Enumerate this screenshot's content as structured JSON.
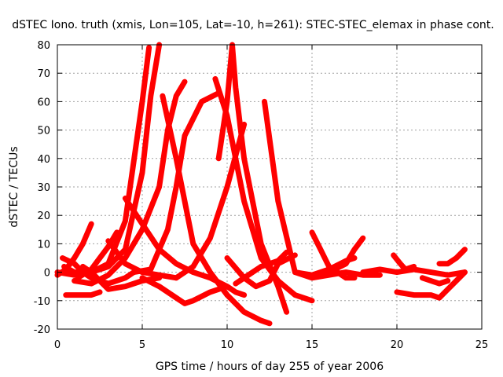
{
  "chart_data": {
    "type": "line",
    "title": "dSTEC Iono. truth (xmis, Lon=105, Lat=-10, h=261): STEC-STEC_elemax in phase cont.",
    "xlabel": "GPS time / hours of day 255 of year 2006",
    "ylabel": "dSTEC  / TECUs",
    "xlim": [
      0,
      25
    ],
    "ylim": [
      -20,
      80
    ],
    "xticks": [
      0,
      5,
      10,
      15,
      20,
      25
    ],
    "yticks": [
      -20,
      -10,
      0,
      10,
      20,
      30,
      40,
      50,
      60,
      70,
      80
    ],
    "grid": true,
    "marker": "+",
    "color": "#ff0000",
    "series": [
      {
        "x": [
          0.0,
          0.5,
          1.0,
          1.5,
          2.0
        ],
        "y": [
          -1,
          1,
          5,
          10,
          17
        ]
      },
      {
        "x": [
          0.0,
          1.0,
          2.0,
          3.0,
          4.0,
          5.0,
          5.5,
          6.0
        ],
        "y": [
          0,
          -1,
          0,
          2,
          8,
          35,
          62,
          80
        ]
      },
      {
        "x": [
          0.4,
          1.0,
          2.0,
          3.0,
          4.0,
          5.0,
          5.4
        ],
        "y": [
          2,
          0,
          0,
          3,
          18,
          60,
          79
        ]
      },
      {
        "x": [
          0.3,
          1.0,
          1.5,
          2.0,
          3.0,
          4.0,
          4.5
        ],
        "y": [
          5,
          3,
          0,
          -2,
          -4,
          -2,
          0
        ]
      },
      {
        "x": [
          0.5,
          1.0,
          1.5,
          2.0,
          2.5
        ],
        "y": [
          -8,
          -8,
          -8,
          -8,
          -7
        ]
      },
      {
        "x": [
          1.0,
          2.0,
          3.0,
          4.0,
          5.0,
          6.0,
          6.5,
          7.0,
          7.5
        ],
        "y": [
          -3,
          -4,
          -1,
          5,
          15,
          30,
          50,
          62,
          67
        ]
      },
      {
        "x": [
          1.2,
          2.0,
          3.0,
          3.5
        ],
        "y": [
          -2,
          1,
          9,
          14
        ]
      },
      {
        "x": [
          1.5,
          2.0,
          2.5,
          3.0,
          4.0,
          5.0,
          6.0
        ],
        "y": [
          2,
          0,
          -3,
          -6,
          -5,
          -3,
          -2
        ]
      },
      {
        "x": [
          3.0,
          4.0,
          5.0,
          6.0,
          7.0
        ],
        "y": [
          11,
          3,
          0,
          -1,
          -2
        ]
      },
      {
        "x": [
          4.0,
          5.0,
          6.0,
          7.0,
          8.0,
          9.0,
          10.0,
          10.5,
          11.0
        ],
        "y": [
          26,
          17,
          8,
          3,
          0,
          -2,
          -5,
          -7,
          -8
        ]
      },
      {
        "x": [
          4.5,
          5.5,
          6.5,
          7.0,
          7.5,
          8.5,
          9.5
        ],
        "y": [
          0,
          1,
          15,
          30,
          48,
          60,
          63
        ]
      },
      {
        "x": [
          6.2,
          7.0,
          8.0,
          9.0,
          10.0,
          11.0,
          12.0,
          12.5
        ],
        "y": [
          62,
          40,
          10,
          0,
          -8,
          -14,
          -17,
          -18
        ]
      },
      {
        "x": [
          5.0,
          6.0,
          7.0,
          7.5,
          8.0,
          9.0,
          10.0
        ],
        "y": [
          -2,
          -5,
          -9,
          -11,
          -10,
          -7,
          -5
        ]
      },
      {
        "x": [
          7.0,
          8.0,
          9.0,
          10.0,
          11.0
        ],
        "y": [
          -2,
          2,
          12,
          30,
          52
        ]
      },
      {
        "x": [
          9.3,
          10.0,
          11.0,
          12.0,
          13.0,
          14.0,
          15.0
        ],
        "y": [
          68,
          55,
          25,
          5,
          -3,
          -8,
          -10
        ]
      },
      {
        "x": [
          9.5,
          10.0,
          10.3,
          10.5,
          11.0,
          12.0,
          13.0,
          13.5
        ],
        "y": [
          40,
          60,
          80,
          65,
          40,
          10,
          -5,
          -14
        ]
      },
      {
        "x": [
          10.0,
          11.0,
          11.7,
          12.5,
          13.0,
          14.0
        ],
        "y": [
          5,
          -2,
          -5,
          -3,
          3,
          6
        ]
      },
      {
        "x": [
          10.5,
          11.0,
          12.0,
          13.0,
          13.5
        ],
        "y": [
          -4,
          -2,
          2,
          4,
          7
        ]
      },
      {
        "x": [
          12.2,
          13.0,
          14.0,
          15.0,
          16.0,
          17.0,
          18.0,
          19.0
        ],
        "y": [
          60,
          25,
          0,
          -2,
          -1,
          0,
          -1,
          -1
        ]
      },
      {
        "x": [
          14.0,
          15.0,
          16.0,
          17.0,
          17.5
        ],
        "y": [
          0,
          -1,
          1,
          4,
          5
        ]
      },
      {
        "x": [
          15.0,
          15.5,
          16.0,
          17.0,
          17.5
        ],
        "y": [
          14,
          8,
          2,
          -2,
          -2
        ]
      },
      {
        "x": [
          15.5,
          16.0,
          17.0,
          17.5,
          18.0
        ],
        "y": [
          -1,
          0,
          3,
          8,
          12
        ]
      },
      {
        "x": [
          18.0,
          19.0,
          20.0,
          21.0,
          22.0,
          23.0,
          24.0
        ],
        "y": [
          0,
          1,
          0,
          1,
          0,
          -1,
          0
        ]
      },
      {
        "x": [
          19.8,
          20.2,
          20.5,
          21.0
        ],
        "y": [
          6,
          3,
          1,
          2
        ]
      },
      {
        "x": [
          20.0,
          21.0,
          22.0,
          22.5,
          23.0,
          23.5,
          24.0
        ],
        "y": [
          -7,
          -8,
          -8,
          -9,
          -6,
          -3,
          0
        ]
      },
      {
        "x": [
          21.5,
          22.0,
          22.5,
          23.0
        ],
        "y": [
          -2,
          -3,
          -4,
          -3
        ]
      },
      {
        "x": [
          22.5,
          23.0,
          23.5,
          24.0
        ],
        "y": [
          3,
          3,
          5,
          8
        ]
      }
    ]
  }
}
